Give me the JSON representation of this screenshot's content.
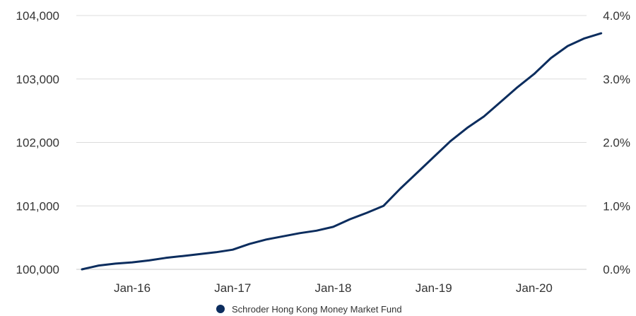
{
  "chart_data": {
    "type": "line",
    "x_tick_labels": [
      "Jan-16",
      "Jan-17",
      "Jan-18",
      "Jan-19",
      "Jan-20"
    ],
    "x_tick_dates": [
      "2016-01",
      "2017-01",
      "2018-01",
      "2019-01",
      "2020-01"
    ],
    "y_left": {
      "ticks": [
        100000,
        101000,
        102000,
        103000,
        104000
      ],
      "tick_labels": [
        "100,000",
        "101,000",
        "102,000",
        "103,000",
        "104,000"
      ],
      "lim": [
        100000,
        104000
      ]
    },
    "y_right": {
      "ticks": [
        0,
        1,
        2,
        3,
        4
      ],
      "tick_labels": [
        "0.0%",
        "1.0%",
        "2.0%",
        "3.0%",
        "4.0%"
      ],
      "lim": [
        0,
        4
      ]
    },
    "grid": true,
    "legend_position": "bottom-center",
    "series": [
      {
        "name": "Schroder Hong Kong Money Market Fund",
        "color": "#0c2d5e",
        "x": [
          "2015-07",
          "2015-09",
          "2015-11",
          "2016-01",
          "2016-03",
          "2016-05",
          "2016-07",
          "2016-09",
          "2016-11",
          "2017-01",
          "2017-03",
          "2017-05",
          "2017-07",
          "2017-09",
          "2017-11",
          "2018-01",
          "2018-03",
          "2018-05",
          "2018-07",
          "2018-09",
          "2018-11",
          "2019-01",
          "2019-03",
          "2019-05",
          "2019-07",
          "2019-09",
          "2019-11",
          "2020-01",
          "2020-03",
          "2020-05",
          "2020-07",
          "2020-09"
        ],
        "y": [
          100000,
          100060,
          100090,
          100110,
          100140,
          100180,
          100210,
          100240,
          100270,
          100310,
          100400,
          100470,
          100520,
          100570,
          100610,
          100670,
          100790,
          100890,
          101000,
          101270,
          101520,
          101770,
          102020,
          102230,
          102410,
          102640,
          102870,
          103080,
          103330,
          103520,
          103640,
          103720
        ]
      }
    ]
  }
}
